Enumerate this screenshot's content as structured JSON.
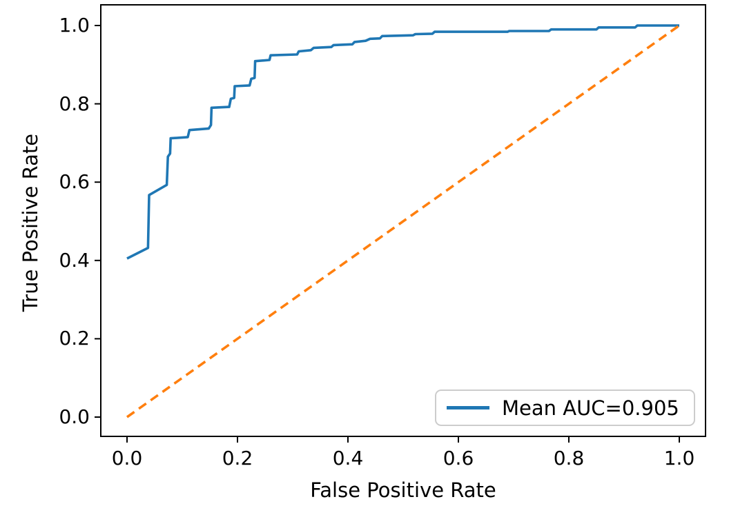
{
  "figure": {
    "xlabel": "False Positive Rate",
    "ylabel": "True Positive Rate",
    "x_ticks": [
      "0.0",
      "0.2",
      "0.4",
      "0.6",
      "0.8",
      "1.0"
    ],
    "y_ticks": [
      "0.0",
      "0.2",
      "0.4",
      "0.6",
      "0.8",
      "1.0"
    ]
  },
  "legend": {
    "entries": [
      {
        "label": "Mean AUC=0.905",
        "color": "#1f77b4"
      }
    ]
  },
  "colors": {
    "roc_curve": "#1f77b4",
    "chance_line": "#ff7f0e",
    "axis": "#000000",
    "legend_border": "#cccccc",
    "background": "#ffffff"
  },
  "chart_data": {
    "type": "line",
    "title": "",
    "xlabel": "False Positive Rate",
    "ylabel": "True Positive Rate",
    "xlim": [
      -0.05,
      1.05
    ],
    "ylim": [
      -0.05,
      1.05
    ],
    "x_tick_values": [
      0.0,
      0.2,
      0.4,
      0.6,
      0.8,
      1.0
    ],
    "y_tick_values": [
      0.0,
      0.2,
      0.4,
      0.6,
      0.8,
      1.0
    ],
    "grid": false,
    "legend_position": "lower right",
    "series": [
      {
        "name": "Mean AUC=0.905",
        "style": "solid",
        "color": "#1f77b4",
        "points": [
          [
            0.0,
            0.405
          ],
          [
            0.038,
            0.432
          ],
          [
            0.04,
            0.567
          ],
          [
            0.072,
            0.593
          ],
          [
            0.074,
            0.665
          ],
          [
            0.078,
            0.673
          ],
          [
            0.079,
            0.712
          ],
          [
            0.11,
            0.715
          ],
          [
            0.113,
            0.733
          ],
          [
            0.148,
            0.737
          ],
          [
            0.152,
            0.746
          ],
          [
            0.153,
            0.79
          ],
          [
            0.185,
            0.792
          ],
          [
            0.188,
            0.813
          ],
          [
            0.194,
            0.815
          ],
          [
            0.195,
            0.845
          ],
          [
            0.222,
            0.847
          ],
          [
            0.225,
            0.864
          ],
          [
            0.231,
            0.866
          ],
          [
            0.232,
            0.909
          ],
          [
            0.258,
            0.912
          ],
          [
            0.26,
            0.924
          ],
          [
            0.308,
            0.926
          ],
          [
            0.311,
            0.934
          ],
          [
            0.333,
            0.937
          ],
          [
            0.338,
            0.943
          ],
          [
            0.37,
            0.945
          ],
          [
            0.374,
            0.95
          ],
          [
            0.408,
            0.952
          ],
          [
            0.412,
            0.958
          ],
          [
            0.432,
            0.961
          ],
          [
            0.44,
            0.966
          ],
          [
            0.458,
            0.967
          ],
          [
            0.462,
            0.973
          ],
          [
            0.518,
            0.975
          ],
          [
            0.522,
            0.978
          ],
          [
            0.553,
            0.979
          ],
          [
            0.557,
            0.984
          ],
          [
            0.689,
            0.984
          ],
          [
            0.692,
            0.986
          ],
          [
            0.764,
            0.986
          ],
          [
            0.768,
            0.99
          ],
          [
            0.85,
            0.99
          ],
          [
            0.854,
            0.995
          ],
          [
            0.92,
            0.995
          ],
          [
            0.924,
            1.0
          ],
          [
            1.0,
            1.0
          ]
        ]
      },
      {
        "name": "chance-diagonal",
        "style": "dashed",
        "color": "#ff7f0e",
        "points": [
          [
            0.0,
            0.0
          ],
          [
            1.0,
            1.0
          ]
        ]
      }
    ]
  }
}
